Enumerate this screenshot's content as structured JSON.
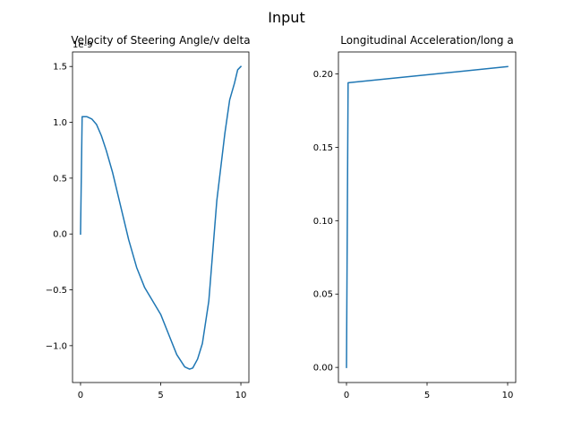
{
  "figure": {
    "suptitle": "Input"
  },
  "colors": {
    "series": "#1f77b4",
    "background": "#ffffff",
    "axes": "#000000"
  },
  "chart_data": [
    {
      "type": "line",
      "title": "Velocity of Steering Angle/v delta",
      "xlabel": "",
      "ylabel": "",
      "y_offset_label": "1e-9",
      "xlim": [
        -0.5,
        10.5
      ],
      "ylim": [
        -1.33,
        1.63
      ],
      "x_ticks": [
        0,
        5,
        10
      ],
      "x_tick_labels": [
        "0",
        "5",
        "10"
      ],
      "y_ticks": [
        -1.0,
        -0.5,
        0.0,
        0.5,
        1.0,
        1.5
      ],
      "y_tick_labels": [
        "−1.0",
        "−0.5",
        "0.0",
        "0.5",
        "1.0",
        "1.5"
      ],
      "grid": false,
      "series": [
        {
          "x": [
            0,
            0.1,
            0.4,
            0.7,
            1.0,
            1.3,
            1.6,
            2.0,
            2.5,
            3.0,
            3.5,
            4.0,
            4.5,
            5.0,
            5.5,
            6.0,
            6.5,
            6.8,
            7.0,
            7.3,
            7.6,
            8.0,
            8.5,
            9.0,
            9.3,
            9.6,
            9.8,
            10.0
          ],
          "y": [
            0.0,
            1.05,
            1.05,
            1.03,
            0.98,
            0.88,
            0.75,
            0.55,
            0.25,
            -0.05,
            -0.3,
            -0.48,
            -0.6,
            -0.72,
            -0.9,
            -1.08,
            -1.19,
            -1.21,
            -1.2,
            -1.12,
            -0.98,
            -0.6,
            0.3,
            0.9,
            1.2,
            1.35,
            1.47,
            1.5
          ]
        }
      ]
    },
    {
      "type": "line",
      "title": "Longitudinal Acceleration/long a",
      "xlabel": "",
      "ylabel": "",
      "xlim": [
        -0.5,
        10.5
      ],
      "ylim": [
        -0.0103,
        0.215
      ],
      "x_ticks": [
        0,
        5,
        10
      ],
      "x_tick_labels": [
        "0",
        "5",
        "10"
      ],
      "y_ticks": [
        0.0,
        0.05,
        0.1,
        0.15,
        0.2
      ],
      "y_tick_labels": [
        "0.00",
        "0.05",
        "0.10",
        "0.15",
        "0.20"
      ],
      "grid": false,
      "series": [
        {
          "x": [
            0,
            0.1,
            10.0
          ],
          "y": [
            0.0,
            0.194,
            0.205
          ]
        }
      ]
    }
  ]
}
